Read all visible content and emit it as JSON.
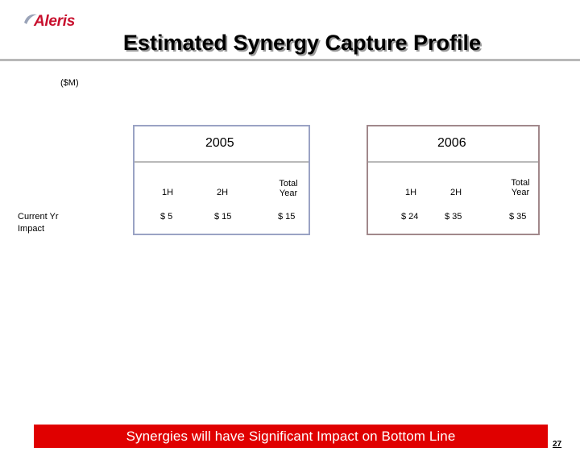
{
  "brand": {
    "logo_text": "Aleris",
    "brand_color": "#c8102e"
  },
  "header": {
    "title": "Estimated Synergy Capture Profile"
  },
  "units": "($M)",
  "row_label": "Current Yr Impact",
  "row_label_lines": [
    "Current Yr",
    "Impact"
  ],
  "panels": [
    {
      "year": "2005",
      "columns": [
        {
          "label_lines": [
            "1H"
          ],
          "value": "$ 5"
        },
        {
          "label_lines": [
            "2H"
          ],
          "value": "$ 15"
        },
        {
          "label_lines": [
            "Total",
            "Year"
          ],
          "value": "$ 15"
        }
      ],
      "border_color": "#9aa3c4"
    },
    {
      "year": "2006",
      "columns": [
        {
          "label_lines": [
            "1H"
          ],
          "value": "$ 24"
        },
        {
          "label_lines": [
            "2H"
          ],
          "value": "$ 35"
        },
        {
          "label_lines": [
            "Total",
            "Year"
          ],
          "value": "$ 35"
        }
      ],
      "border_color": "#a1888b"
    }
  ],
  "footer": {
    "banner": "Synergies will have Significant Impact on Bottom Line",
    "banner_color": "#e00000",
    "page_number": "27"
  }
}
